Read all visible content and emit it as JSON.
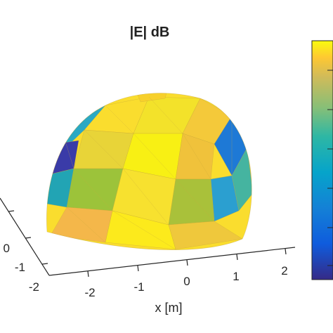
{
  "chart_data": {
    "type": "surface",
    "title": "|E| dB",
    "xlabel": "x [m]",
    "x_ticks": [
      "-2",
      "-1",
      "0",
      "1",
      "2"
    ],
    "y_ticks": [
      "-2",
      "-1",
      "0"
    ],
    "colormap": "parula",
    "colorbar": {
      "location": "right",
      "min_color": "#352a87",
      "max_color": "#f9fb0e"
    },
    "shape": "hemisphere",
    "grid": false,
    "facets": [
      {
        "color": "#fadd2e"
      },
      {
        "color": "#f3e22a"
      },
      {
        "color": "#f4c93a"
      },
      {
        "color": "#e8d438"
      },
      {
        "color": "#f8f014"
      },
      {
        "color": "#f0c23b"
      },
      {
        "color": "#2aa8c4"
      },
      {
        "color": "#1e79d6"
      },
      {
        "color": "#3a3ba8"
      },
      {
        "color": "#9cc33a"
      },
      {
        "color": "#22a4b4"
      },
      {
        "color": "#f7e12f"
      },
      {
        "color": "#45b4a0"
      },
      {
        "color": "#2b9fd0"
      },
      {
        "color": "#f4b74a"
      },
      {
        "color": "#a9c13a"
      },
      {
        "color": "#efc83c"
      },
      {
        "color": "#fcea1c"
      },
      {
        "color": "#f7d02b"
      }
    ]
  }
}
